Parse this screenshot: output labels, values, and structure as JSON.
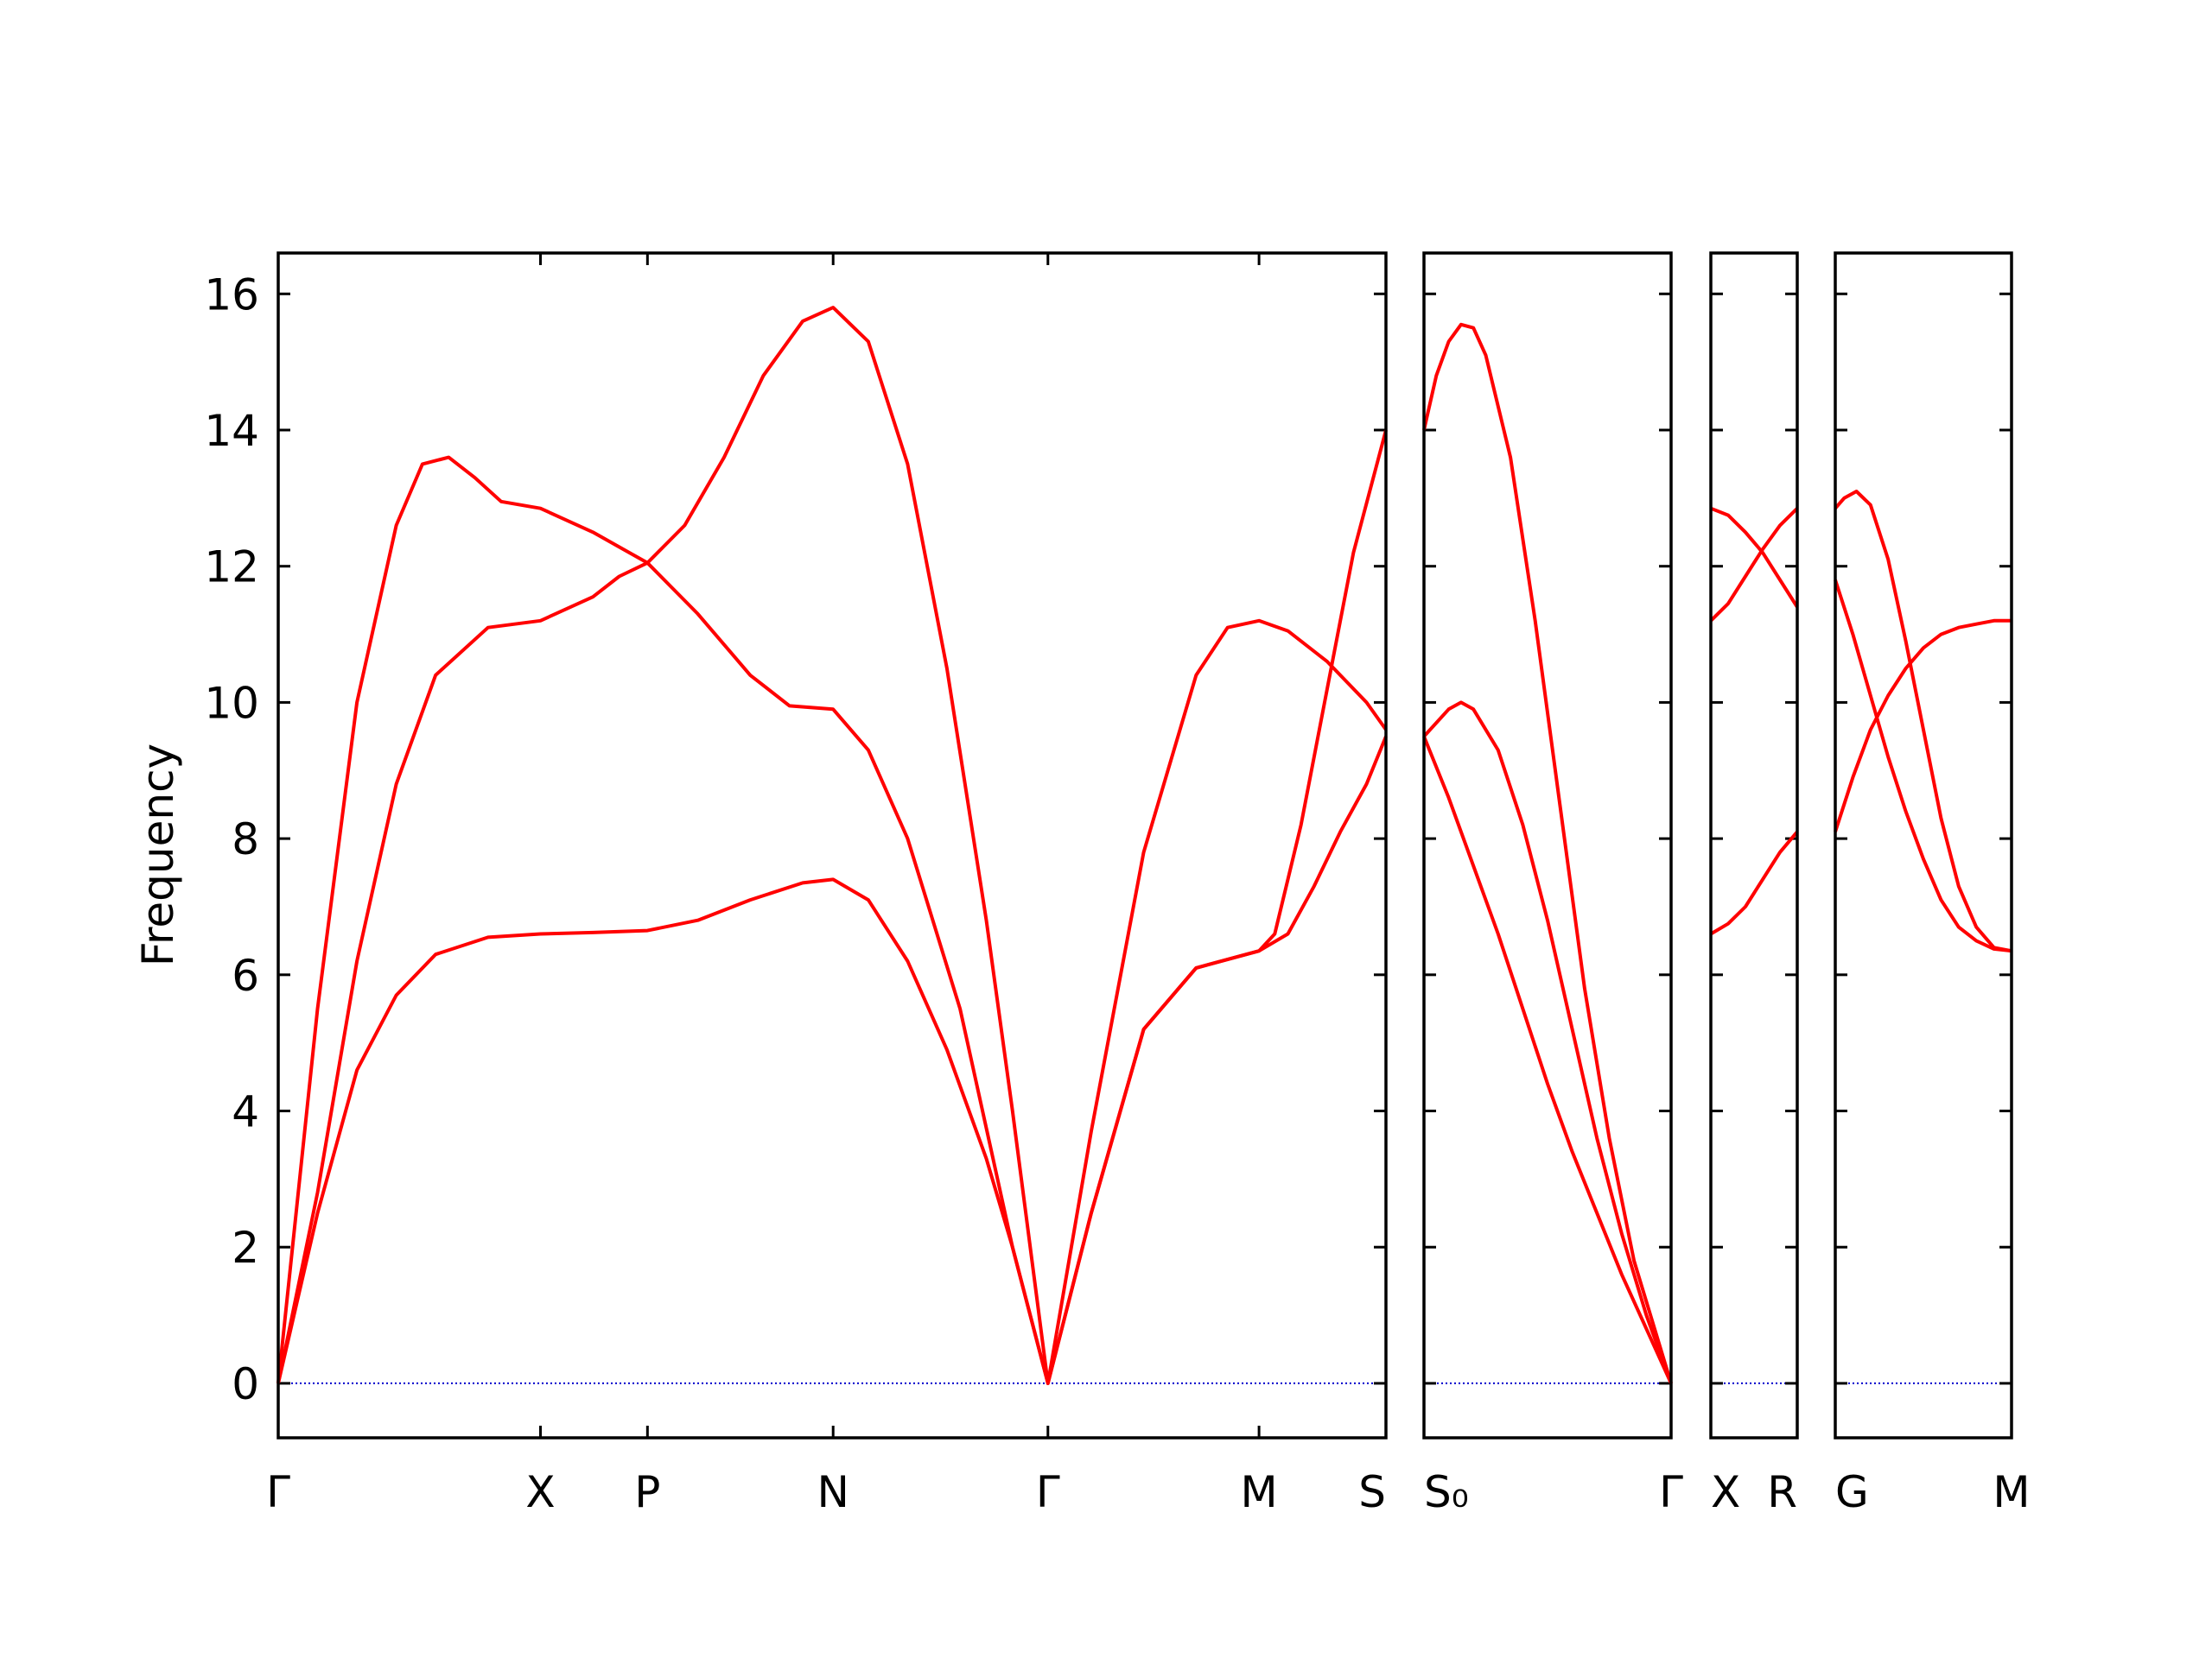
{
  "chart_data": {
    "type": "line",
    "ylabel": "Frequency",
    "ylim": [
      -0.8,
      16.6
    ],
    "yticks": [
      0,
      2,
      4,
      6,
      8,
      10,
      12,
      14,
      16
    ],
    "grid": false,
    "line_color": "#ff0000",
    "zero_line_color": "#0000cc",
    "segments": [
      {
        "points": [
          {
            "x": 0,
            "label": "Γ"
          },
          {
            "x": 1.0,
            "label": "X"
          },
          {
            "x": 1.408,
            "label": "P"
          },
          {
            "x": 2.116,
            "label": "N"
          },
          {
            "x": 2.935,
            "label": "Γ"
          },
          {
            "x": 3.74,
            "label": "M"
          },
          {
            "x": 4.224,
            "label": "S"
          }
        ],
        "xlim": [
          0,
          4.224
        ],
        "series": [
          {
            "values": [
              [
                0,
                0
              ],
              [
                0.15,
                5.5
              ],
              [
                0.3,
                10.0
              ],
              [
                0.45,
                12.6
              ],
              [
                0.55,
                13.5
              ],
              [
                0.65,
                13.6
              ],
              [
                0.75,
                13.3
              ],
              [
                0.85,
                12.95
              ],
              [
                1.0,
                12.85
              ],
              [
                1.2,
                12.5
              ],
              [
                1.408,
                12.05
              ],
              [
                1.6,
                11.3
              ],
              [
                1.8,
                10.4
              ],
              [
                1.95,
                9.95
              ],
              [
                2.116,
                9.9
              ],
              [
                2.25,
                9.3
              ],
              [
                2.4,
                8.0
              ],
              [
                2.6,
                5.5
              ],
              [
                2.8,
                2.0
              ],
              [
                2.935,
                0
              ],
              [
                3.1,
                3.7
              ],
              [
                3.3,
                7.8
              ],
              [
                3.5,
                10.4
              ],
              [
                3.62,
                11.1
              ],
              [
                3.74,
                11.2
              ],
              [
                3.85,
                11.05
              ],
              [
                4.0,
                10.6
              ],
              [
                4.15,
                10.0
              ],
              [
                4.224,
                9.6
              ]
            ]
          },
          {
            "values": [
              [
                0,
                0
              ],
              [
                0.15,
                2.8
              ],
              [
                0.3,
                6.2
              ],
              [
                0.45,
                8.8
              ],
              [
                0.6,
                10.4
              ],
              [
                0.8,
                11.1
              ],
              [
                1.0,
                11.2
              ],
              [
                1.2,
                11.55
              ],
              [
                1.3,
                11.85
              ],
              [
                1.408,
                12.05
              ],
              [
                1.55,
                12.6
              ],
              [
                1.7,
                13.6
              ],
              [
                1.85,
                14.8
              ],
              [
                2.0,
                15.6
              ],
              [
                2.116,
                15.8
              ],
              [
                2.25,
                15.3
              ],
              [
                2.4,
                13.5
              ],
              [
                2.55,
                10.5
              ],
              [
                2.7,
                6.8
              ],
              [
                2.8,
                4.0
              ],
              [
                2.935,
                0
              ],
              [
                3.1,
                2.5
              ],
              [
                3.3,
                5.2
              ],
              [
                3.5,
                6.1
              ],
              [
                3.74,
                6.35
              ],
              [
                3.8,
                6.6
              ],
              [
                3.9,
                8.2
              ],
              [
                4.0,
                10.2
              ],
              [
                4.1,
                12.2
              ],
              [
                4.224,
                14.0
              ]
            ]
          },
          {
            "values": [
              [
                0,
                0
              ],
              [
                0.15,
                2.5
              ],
              [
                0.3,
                4.6
              ],
              [
                0.45,
                5.7
              ],
              [
                0.6,
                6.3
              ],
              [
                0.8,
                6.55
              ],
              [
                1.0,
                6.6
              ],
              [
                1.2,
                6.62
              ],
              [
                1.408,
                6.65
              ],
              [
                1.6,
                6.8
              ],
              [
                1.8,
                7.1
              ],
              [
                2.0,
                7.35
              ],
              [
                2.116,
                7.4
              ],
              [
                2.25,
                7.1
              ],
              [
                2.4,
                6.2
              ],
              [
                2.55,
                4.9
              ],
              [
                2.7,
                3.3
              ],
              [
                2.8,
                2.0
              ],
              [
                2.935,
                0
              ],
              [
                3.1,
                2.5
              ],
              [
                3.3,
                5.2
              ],
              [
                3.5,
                6.1
              ],
              [
                3.74,
                6.35
              ],
              [
                3.85,
                6.6
              ],
              [
                3.95,
                7.3
              ],
              [
                4.05,
                8.1
              ],
              [
                4.15,
                8.8
              ],
              [
                4.224,
                9.5
              ]
            ]
          }
        ]
      },
      {
        "points": [
          {
            "x": 0,
            "label": "S₀"
          },
          {
            "x": 1.0,
            "label": "Γ"
          }
        ],
        "xlim": [
          0,
          1.0
        ],
        "series": [
          {
            "values": [
              [
                0,
                14.0
              ],
              [
                0.05,
                14.8
              ],
              [
                0.1,
                15.3
              ],
              [
                0.15,
                15.55
              ],
              [
                0.2,
                15.5
              ],
              [
                0.25,
                15.1
              ],
              [
                0.35,
                13.6
              ],
              [
                0.45,
                11.2
              ],
              [
                0.55,
                8.5
              ],
              [
                0.65,
                5.8
              ],
              [
                0.75,
                3.6
              ],
              [
                0.85,
                1.8
              ],
              [
                1.0,
                0
              ]
            ]
          },
          {
            "values": [
              [
                0,
                9.5
              ],
              [
                0.1,
                9.9
              ],
              [
                0.15,
                10.0
              ],
              [
                0.2,
                9.9
              ],
              [
                0.3,
                9.3
              ],
              [
                0.4,
                8.2
              ],
              [
                0.5,
                6.8
              ],
              [
                0.6,
                5.2
              ],
              [
                0.7,
                3.6
              ],
              [
                0.8,
                2.2
              ],
              [
                0.9,
                1.0
              ],
              [
                1.0,
                0
              ]
            ]
          },
          {
            "values": [
              [
                0,
                9.5
              ],
              [
                0.1,
                8.6
              ],
              [
                0.2,
                7.6
              ],
              [
                0.3,
                6.6
              ],
              [
                0.4,
                5.5
              ],
              [
                0.5,
                4.4
              ],
              [
                0.6,
                3.4
              ],
              [
                0.7,
                2.5
              ],
              [
                0.8,
                1.6
              ],
              [
                0.9,
                0.8
              ],
              [
                1.0,
                0
              ]
            ]
          }
        ]
      },
      {
        "points": [
          {
            "x": 0,
            "label": "X"
          },
          {
            "x": 1.0,
            "label": "R"
          }
        ],
        "xlim": [
          0,
          1.0
        ],
        "series": [
          {
            "values": [
              [
                0,
                12.85
              ],
              [
                0.2,
                12.75
              ],
              [
                0.4,
                12.5
              ],
              [
                0.6,
                12.2
              ],
              [
                0.8,
                11.8
              ],
              [
                1.0,
                11.4
              ]
            ]
          },
          {
            "values": [
              [
                0,
                11.2
              ],
              [
                0.2,
                11.45
              ],
              [
                0.4,
                11.85
              ],
              [
                0.6,
                12.25
              ],
              [
                0.8,
                12.6
              ],
              [
                1.0,
                12.85
              ]
            ]
          },
          {
            "values": [
              [
                0,
                6.6
              ],
              [
                0.2,
                6.75
              ],
              [
                0.4,
                7.0
              ],
              [
                0.6,
                7.4
              ],
              [
                0.8,
                7.8
              ],
              [
                1.0,
                8.1
              ]
            ]
          }
        ]
      },
      {
        "points": [
          {
            "x": 0,
            "label": "G"
          },
          {
            "x": 1.0,
            "label": "M"
          }
        ],
        "xlim": [
          0,
          1.0
        ],
        "series": [
          {
            "values": [
              [
                0,
                12.85
              ],
              [
                0.05,
                13.0
              ],
              [
                0.12,
                13.1
              ],
              [
                0.2,
                12.9
              ],
              [
                0.3,
                12.1
              ],
              [
                0.4,
                10.9
              ],
              [
                0.5,
                9.6
              ],
              [
                0.6,
                8.3
              ],
              [
                0.7,
                7.3
              ],
              [
                0.8,
                6.7
              ],
              [
                0.9,
                6.4
              ],
              [
                1.0,
                6.35
              ]
            ]
          },
          {
            "values": [
              [
                0,
                11.8
              ],
              [
                0.1,
                11.0
              ],
              [
                0.2,
                10.1
              ],
              [
                0.3,
                9.2
              ],
              [
                0.4,
                8.4
              ],
              [
                0.5,
                7.7
              ],
              [
                0.6,
                7.1
              ],
              [
                0.7,
                6.7
              ],
              [
                0.8,
                6.5
              ],
              [
                0.9,
                6.38
              ],
              [
                1.0,
                6.35
              ]
            ]
          },
          {
            "values": [
              [
                0,
                8.1
              ],
              [
                0.1,
                8.9
              ],
              [
                0.2,
                9.6
              ],
              [
                0.3,
                10.1
              ],
              [
                0.4,
                10.5
              ],
              [
                0.5,
                10.8
              ],
              [
                0.6,
                11.0
              ],
              [
                0.7,
                11.1
              ],
              [
                0.8,
                11.15
              ],
              [
                0.9,
                11.2
              ],
              [
                1.0,
                11.2
              ]
            ]
          }
        ]
      }
    ]
  }
}
